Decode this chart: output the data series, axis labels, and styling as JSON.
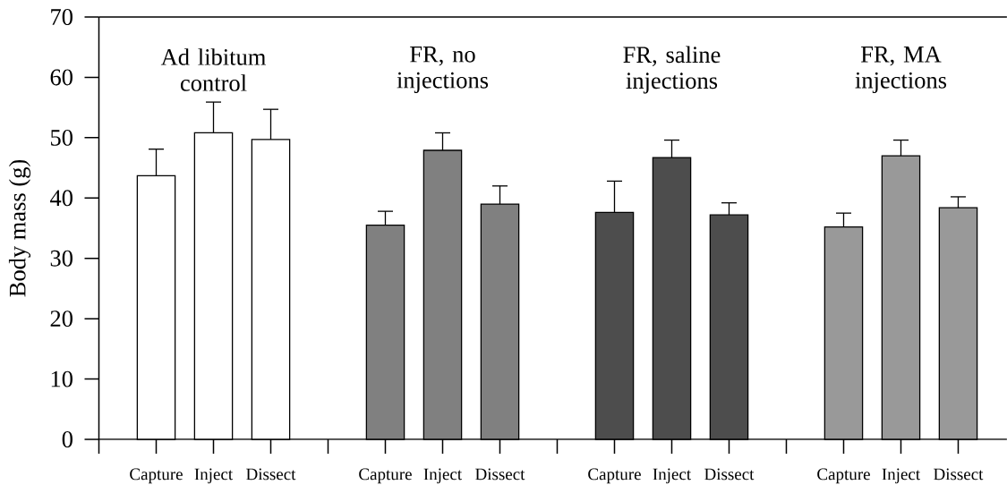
{
  "chart_data": {
    "type": "bar",
    "ylabel": "Body mass (g)",
    "categories": [
      "Capture",
      "Inject",
      "Dissect",
      null,
      "Capture",
      "Inject",
      "Dissect",
      null,
      "Capture",
      "Inject",
      "Dissect",
      null,
      "Capture",
      "Inject",
      "Dissect"
    ],
    "values": [
      43.7,
      50.8,
      49.7,
      null,
      35.5,
      47.9,
      39.0,
      null,
      37.6,
      46.7,
      37.2,
      null,
      35.2,
      47.0,
      38.4
    ],
    "errors": [
      [
        43.7,
        48.1
      ],
      [
        50.8,
        55.9
      ],
      [
        49.7,
        54.7
      ],
      null,
      [
        35.5,
        37.8
      ],
      [
        47.9,
        50.8
      ],
      [
        39.0,
        42.0
      ],
      null,
      [
        37.6,
        42.8
      ],
      [
        46.7,
        49.6
      ],
      [
        37.2,
        39.2
      ],
      null,
      [
        35.2,
        37.5
      ],
      [
        47.0,
        49.6
      ],
      [
        38.4,
        40.2
      ]
    ],
    "colors": [
      "#ffffff",
      "#ffffff",
      "#ffffff",
      null,
      "#808080",
      "#808080",
      "#808080",
      null,
      "#4d4d4d",
      "#4d4d4d",
      "#4d4d4d",
      null,
      "#999999",
      "#999999",
      "#999999"
    ],
    "ylim": [
      0,
      70
    ],
    "yticks": [
      0,
      10,
      20,
      30,
      40,
      50,
      60,
      70
    ],
    "annotations": [
      "Ad libitum control",
      "FR, no injections",
      "FR, saline injections",
      "FR, MA injections"
    ]
  }
}
